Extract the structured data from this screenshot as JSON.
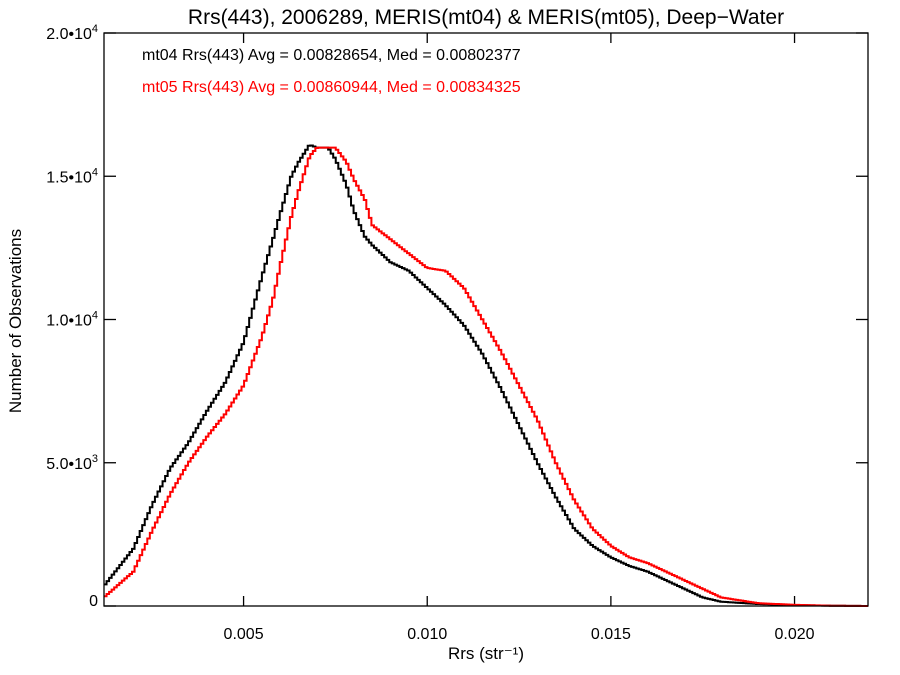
{
  "chart_data": {
    "type": "line",
    "title": "Rrs(443), 2006289, MERIS(mt04) & MERIS(mt05), Deep−Water",
    "xlabel": "Rrs (str⁻¹)",
    "ylabel": "Number of Observations",
    "xlim": [
      0.0012,
      0.022
    ],
    "ylim": [
      0,
      20000
    ],
    "x_ticks": [
      {
        "value": 0.005,
        "label": "0.005"
      },
      {
        "value": 0.01,
        "label": "0.010"
      },
      {
        "value": 0.015,
        "label": "0.015"
      },
      {
        "value": 0.02,
        "label": "0.020"
      }
    ],
    "y_ticks": [
      {
        "value": 0,
        "label": "0",
        "sup": ""
      },
      {
        "value": 5000,
        "label": "5.0•10",
        "sup": "3"
      },
      {
        "value": 10000,
        "label": "1.0•10",
        "sup": "4"
      },
      {
        "value": 15000,
        "label": "1.5•10",
        "sup": "4"
      },
      {
        "value": 20000,
        "label": "2.0•10",
        "sup": "4"
      }
    ],
    "grid": false,
    "legend_position": "top-left",
    "series": [
      {
        "name": "mt04 Rrs(443) Avg = 0.00828654, Med = 0.00802377",
        "color": "#000000",
        "x": [
          0.0012,
          0.002,
          0.0025,
          0.003,
          0.0035,
          0.004,
          0.0045,
          0.005,
          0.0055,
          0.0058,
          0.006,
          0.0063,
          0.0065,
          0.0068,
          0.007,
          0.0073,
          0.0075,
          0.0078,
          0.008,
          0.0083,
          0.0085,
          0.009,
          0.0095,
          0.01,
          0.0105,
          0.011,
          0.0115,
          0.012,
          0.0125,
          0.013,
          0.0135,
          0.014,
          0.0145,
          0.015,
          0.0155,
          0.016,
          0.0165,
          0.017,
          0.0175,
          0.018,
          0.019,
          0.02,
          0.021,
          0.022
        ],
        "y": [
          700,
          2000,
          3500,
          4800,
          5700,
          6800,
          7800,
          9200,
          11500,
          12800,
          13700,
          15000,
          15500,
          16100,
          16000,
          16000,
          15600,
          14700,
          13800,
          12900,
          12600,
          12000,
          11700,
          11100,
          10500,
          9800,
          8800,
          7600,
          6300,
          5000,
          3800,
          2700,
          2100,
          1700,
          1400,
          1200,
          900,
          600,
          300,
          150,
          70,
          30,
          10,
          0
        ]
      },
      {
        "name": "mt05 Rrs(443) Avg = 0.00860944, Med = 0.00834325",
        "color": "#ff0000",
        "x": [
          0.0012,
          0.002,
          0.0025,
          0.003,
          0.0035,
          0.004,
          0.0045,
          0.005,
          0.0055,
          0.0058,
          0.006,
          0.0063,
          0.0065,
          0.0068,
          0.007,
          0.0073,
          0.0075,
          0.0078,
          0.008,
          0.0083,
          0.0085,
          0.009,
          0.0095,
          0.01,
          0.0105,
          0.011,
          0.0115,
          0.012,
          0.0125,
          0.013,
          0.0135,
          0.014,
          0.0145,
          0.015,
          0.0155,
          0.016,
          0.0165,
          0.017,
          0.0175,
          0.018,
          0.019,
          0.02,
          0.021,
          0.022
        ],
        "y": [
          300,
          1200,
          2600,
          3900,
          5000,
          5900,
          6700,
          7700,
          9400,
          10700,
          11900,
          13600,
          14500,
          15700,
          16000,
          16000,
          16000,
          15500,
          14900,
          14200,
          13300,
          12800,
          12300,
          11800,
          11700,
          11100,
          10000,
          8900,
          7700,
          6500,
          5000,
          3700,
          2700,
          2100,
          1700,
          1500,
          1200,
          900,
          600,
          300,
          100,
          40,
          10,
          0
        ]
      }
    ]
  }
}
